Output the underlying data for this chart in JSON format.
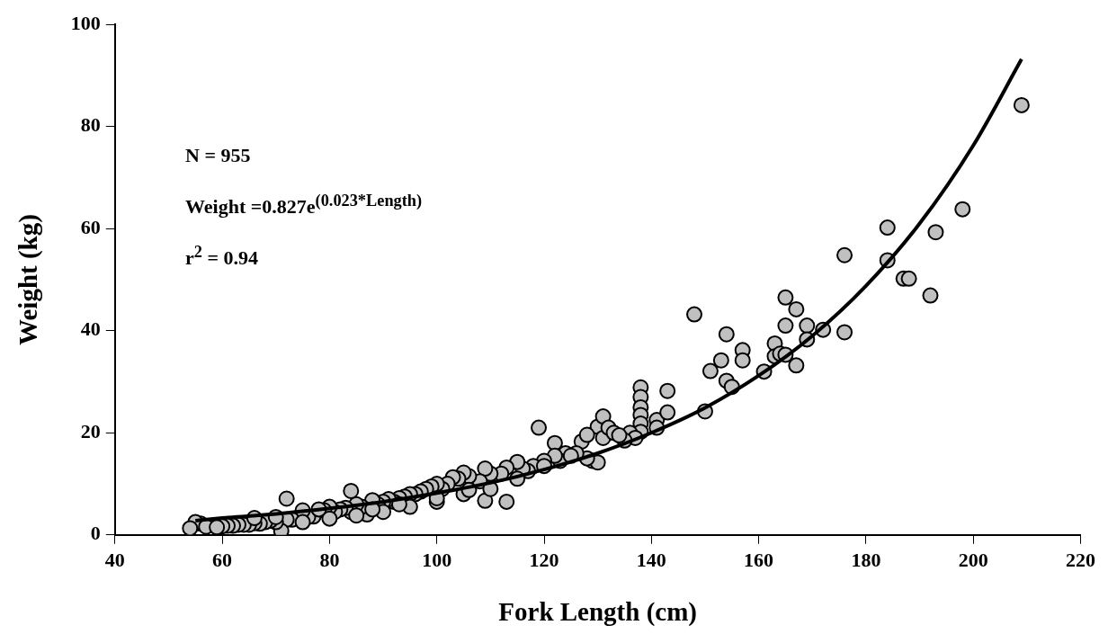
{
  "chart_data": {
    "type": "scatter",
    "xlabel": "Fork Length (cm)",
    "ylabel": "Weight (kg)",
    "xlim": [
      40,
      220
    ],
    "xticks": [
      40,
      60,
      80,
      100,
      120,
      140,
      160,
      180,
      200,
      220
    ],
    "ylim": [
      0,
      100
    ],
    "yticks": [
      0,
      20,
      40,
      60,
      80,
      100
    ],
    "grid": false,
    "legend": false,
    "marker": "circle",
    "annotations": [
      "N = 955",
      "Weight =0.827e$^{(0.023*Length)}$",
      "r$^{2}$ = 0.94"
    ],
    "series": [
      {
        "type": "scatter",
        "color": "#c0c0c0",
        "x": [
          148,
          150,
          151,
          153,
          154,
          154,
          155,
          157,
          157,
          161,
          163,
          163,
          164,
          165,
          165,
          165,
          167,
          167,
          169,
          169,
          172,
          176,
          176,
          184,
          184,
          187,
          188,
          192,
          193,
          198,
          209,
          138,
          138,
          138,
          138,
          138,
          138,
          141,
          143,
          143,
          141,
          136,
          137,
          135,
          130,
          131,
          131,
          132,
          133,
          134,
          129,
          130,
          128,
          127,
          128,
          126,
          124,
          123,
          122,
          122,
          119,
          120,
          118,
          117,
          116,
          115,
          113,
          113,
          112,
          110,
          109,
          109,
          108,
          106,
          105,
          104,
          103,
          102,
          101,
          100,
          99,
          98,
          97,
          96,
          95,
          94,
          93,
          92,
          91,
          90,
          89,
          88,
          87,
          86,
          85,
          84,
          84,
          83,
          82,
          81,
          80,
          79,
          77,
          76,
          75,
          73,
          72,
          72,
          71,
          70,
          69,
          68,
          67,
          66,
          65,
          64,
          63,
          62,
          61,
          60,
          56,
          55,
          54,
          57,
          59,
          66,
          70,
          75,
          80,
          85,
          90,
          95,
          100,
          105,
          110,
          115,
          120,
          125,
          100,
          106,
          88,
          93,
          78
        ],
        "values": [
          43.2,
          24.2,
          32.1,
          34.2,
          39.3,
          30.2,
          29,
          36.2,
          34.2,
          32,
          37.5,
          35,
          35.5,
          46.5,
          41,
          35.3,
          44.2,
          33.2,
          41,
          38.3,
          40.2,
          54.8,
          39.7,
          60.2,
          53.8,
          50.2,
          50.2,
          46.9,
          59.3,
          63.8,
          84.2,
          28.9,
          27,
          25,
          23.5,
          21.8,
          20.2,
          22.5,
          28.2,
          24,
          21,
          20,
          19,
          18.5,
          21.2,
          23.2,
          19,
          21,
          20,
          19.5,
          14.5,
          14.2,
          15,
          18.3,
          19.6,
          16,
          16,
          14.5,
          18,
          15.5,
          21,
          14.5,
          13.5,
          12.5,
          13,
          14.3,
          13.2,
          6.5,
          12,
          12,
          13,
          6.7,
          10.5,
          11.5,
          12.2,
          11,
          11.3,
          10,
          9,
          10,
          9.5,
          9,
          8.5,
          8,
          8,
          7.5,
          7.2,
          6.5,
          7,
          6.5,
          6,
          6.8,
          4,
          5.5,
          6,
          8.6,
          4.5,
          5.3,
          5,
          4.5,
          5.5,
          4.8,
          3.6,
          3.5,
          4.8,
          3,
          7.1,
          3,
          0.8,
          2.5,
          2.8,
          2.5,
          2.2,
          2.3,
          2,
          2,
          2,
          1.8,
          1.8,
          1.7,
          2.2,
          2.5,
          1.3,
          1.6,
          1.5,
          3.3,
          3.5,
          2.5,
          3.2,
          3.8,
          4.5,
          5.5,
          6.5,
          8,
          9,
          11,
          13.5,
          15.5,
          7.2,
          8.8,
          5,
          6,
          5
        ]
      },
      {
        "type": "line",
        "color": "#000000",
        "marker": "none",
        "x": [
          55,
          60,
          70,
          80,
          90,
          100,
          110,
          120,
          130,
          140,
          150,
          160,
          170,
          180,
          190,
          200,
          209
        ],
        "values": [
          2.8,
          3.3,
          4.1,
          5.2,
          6.5,
          8.2,
          10.2,
          12.8,
          16,
          20,
          24.9,
          31.2,
          39,
          48.8,
          61,
          76.3,
          93.2
        ]
      }
    ]
  }
}
